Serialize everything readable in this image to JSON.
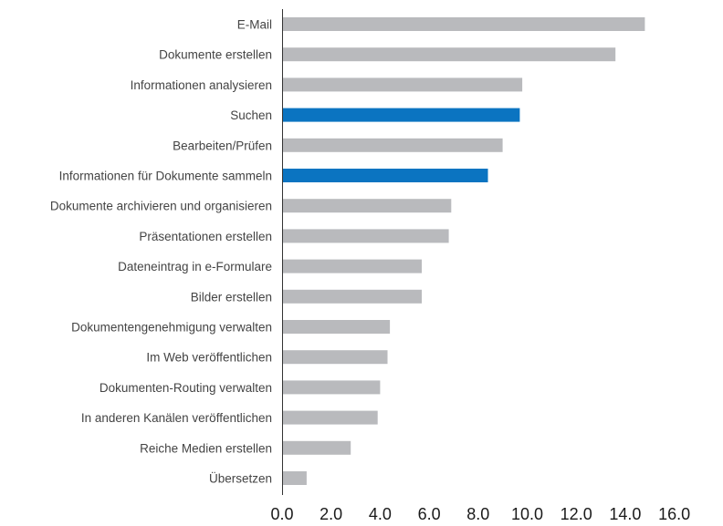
{
  "chart_data": {
    "type": "bar",
    "orientation": "horizontal",
    "title": "",
    "xlabel": "",
    "ylabel": "",
    "xlim": [
      0,
      16
    ],
    "x_ticks": [
      "0.0",
      "2.0",
      "4.0",
      "6.0",
      "8.0",
      "10.0",
      "12.0",
      "14.0",
      "16.0"
    ],
    "grid": false,
    "categories": [
      "E-Mail",
      "Dokumente erstellen",
      "Informationen analysieren",
      "Suchen",
      "Bearbeiten/Prüfen",
      "Informationen für Dokumente sammeln",
      "Dokumente archivieren und organisieren",
      "Präsentationen erstellen",
      "Dateneintrag in e-Formulare",
      "Bilder erstellen",
      "Dokumentengenehmigung verwalten",
      "Im Web veröffentlichen",
      "Dokumenten-Routing verwalten",
      "In anderen Kanälen veröffentlichen",
      "Reiche Medien erstellen",
      "Übersetzen"
    ],
    "values": [
      14.8,
      13.6,
      9.8,
      9.7,
      9.0,
      8.4,
      6.9,
      6.8,
      5.7,
      5.7,
      4.4,
      4.3,
      4.0,
      3.9,
      2.8,
      1.0
    ],
    "highlighted": [
      "Suchen",
      "Informationen für Dokumente sammeln"
    ],
    "colors": {
      "default": "#b9babd",
      "highlight": "#0b74c1",
      "axis": "#333333"
    }
  }
}
